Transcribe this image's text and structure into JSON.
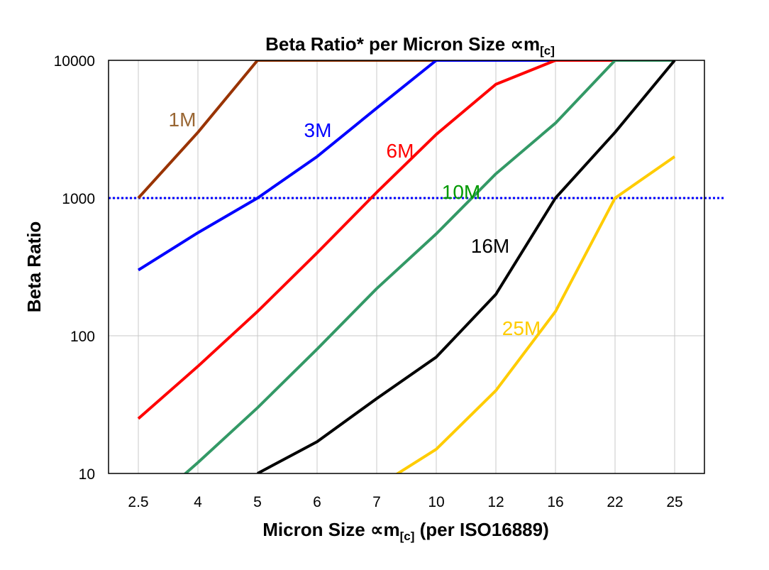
{
  "chart_data": {
    "type": "line",
    "title": "Beta Ratio* per Micron Size ∝m",
    "title_subscript": "[c]",
    "xlabel": "Micron Size ∝m",
    "xlabel_subscript": "[c]",
    "xlabel_suffix": " (per ISO16889)",
    "ylabel": "Beta Ratio",
    "y_scale": "log",
    "ylim": [
      10,
      10000
    ],
    "y_ticks": [
      "10",
      "100",
      "1000",
      "10000"
    ],
    "grid": true,
    "categories": [
      "2.5",
      "4",
      "5",
      "6",
      "7",
      "10",
      "12",
      "16",
      "22",
      "25"
    ],
    "reference_line": {
      "value": 1000,
      "color": "#0000FF",
      "style": "dotted"
    },
    "series": [
      {
        "name": "1M",
        "color": "#993300",
        "label_color": "#996633",
        "values": [
          1000,
          3000,
          10000,
          10000,
          10000,
          10000,
          10000,
          10000,
          10000,
          10000
        ]
      },
      {
        "name": "3M",
        "color": "#0000FF",
        "label_color": "#0000FF",
        "values": [
          300,
          560,
          1000,
          2000,
          4500,
          10000,
          10000,
          10000,
          10000,
          10000
        ]
      },
      {
        "name": "6M",
        "color": "#FF0000",
        "label_color": "#FF0000",
        "values": [
          25,
          60,
          150,
          400,
          1100,
          2900,
          6700,
          10000,
          10000,
          10000
        ]
      },
      {
        "name": "10M",
        "color": "#339966",
        "label_color": "#009900",
        "values": [
          5,
          12,
          30,
          80,
          220,
          550,
          1500,
          3500,
          10000,
          10000
        ]
      },
      {
        "name": "16M",
        "color": "#000000",
        "label_color": "#000000",
        "values": [
          null,
          null,
          10,
          17,
          35,
          70,
          200,
          1000,
          3000,
          10000
        ]
      },
      {
        "name": "25M",
        "color": "#FFCC00",
        "label_color": "#FFCC00",
        "values": [
          null,
          null,
          null,
          null,
          8,
          15,
          40,
          150,
          1000,
          2000
        ]
      }
    ]
  }
}
